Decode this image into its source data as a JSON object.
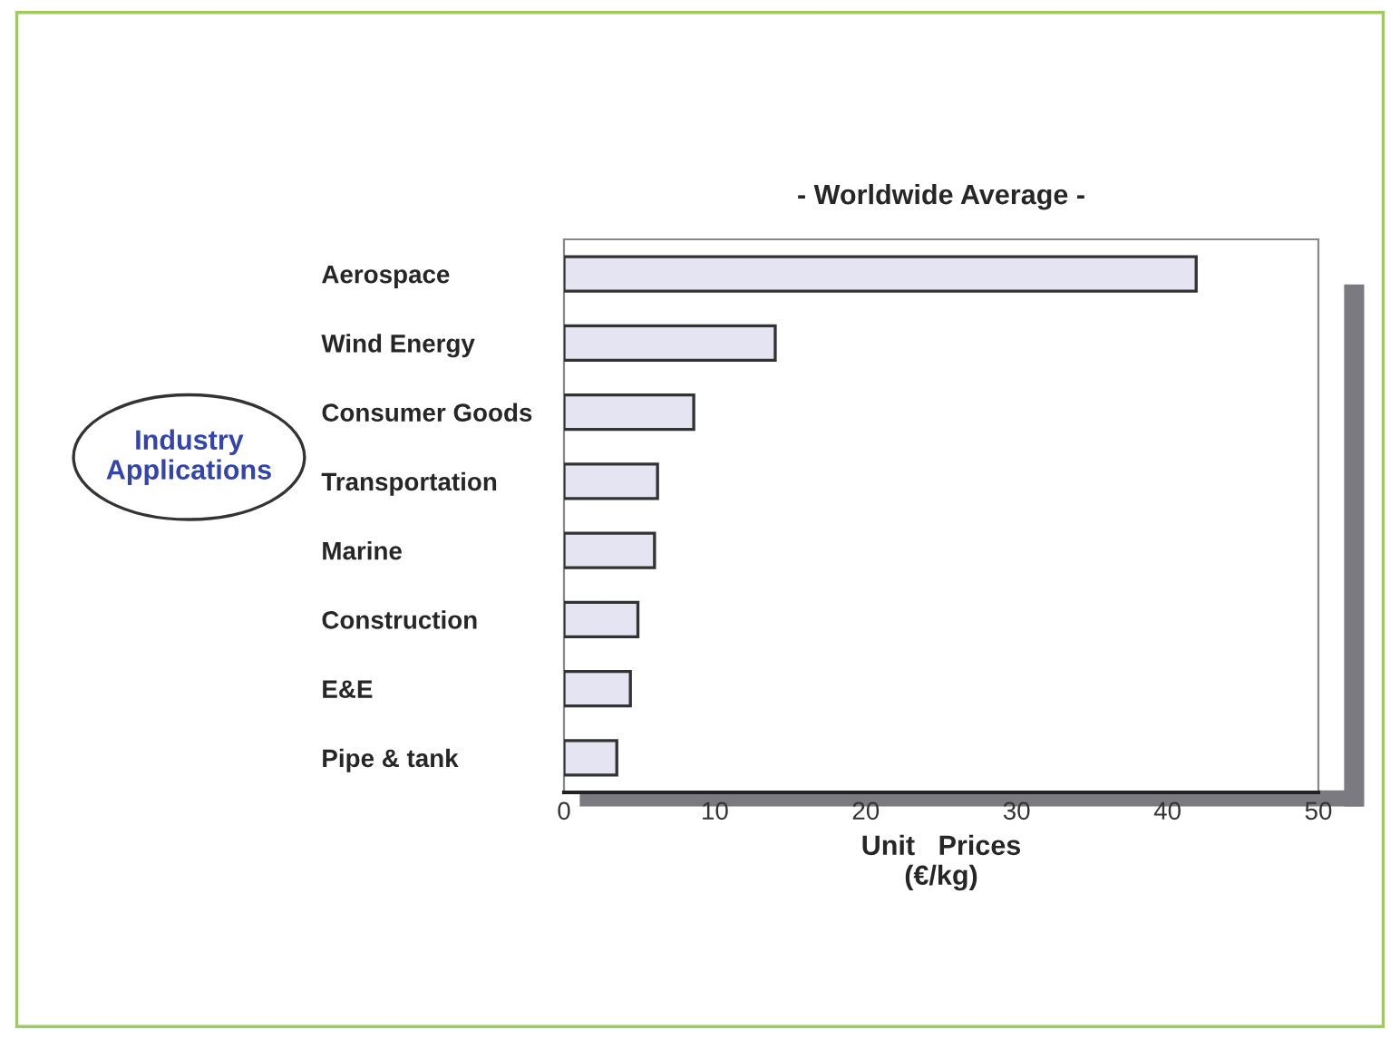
{
  "chart_data": {
    "type": "bar",
    "orientation": "horizontal",
    "title": "- Worldwide Average -",
    "ylabel": "Industry\nApplications",
    "xlabel": "Unit   Prices\n(€/kg)",
    "categories": [
      "Aerospace",
      "Wind Energy",
      "Consumer Goods",
      "Transportation",
      "Marine",
      "Construction",
      "E&E",
      "Pipe & tank"
    ],
    "values": [
      41.9,
      14.0,
      8.6,
      6.2,
      6.0,
      4.9,
      4.4,
      3.5
    ],
    "color": "#e4e4f2",
    "xlim": [
      0,
      50
    ],
    "xticks": [
      0,
      10,
      20,
      30,
      40,
      50
    ],
    "grid": false,
    "legend": false
  }
}
